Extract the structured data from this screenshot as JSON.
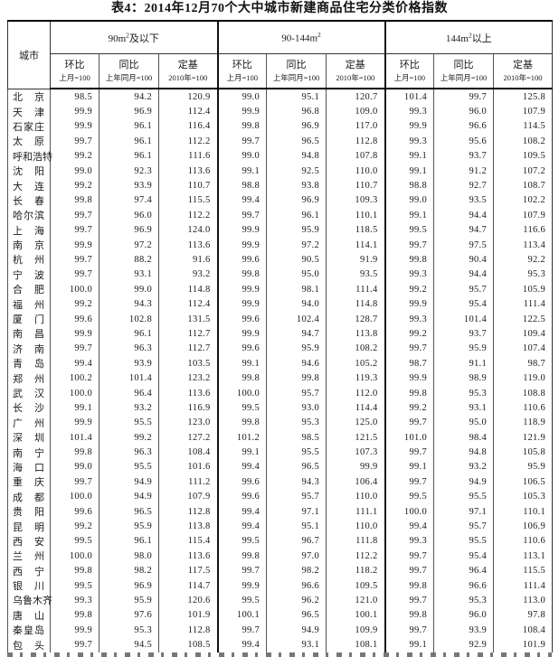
{
  "title": "表4：2014年12月70个大中城市新建商品住宅分类价格指数",
  "table": {
    "city_header": "城市",
    "groups": [
      {
        "pre": "90m",
        "sup": "2",
        "post": "及以下"
      },
      {
        "pre": "90-144m",
        "sup": "2",
        "post": ""
      },
      {
        "pre": "144m",
        "sup": "2",
        "post": "以上"
      }
    ],
    "sub_headers": [
      {
        "label": "环比",
        "base": "上月=100"
      },
      {
        "label": "同比",
        "base": "上年同月=100"
      },
      {
        "label": "定基",
        "base": "2010年=100"
      }
    ],
    "rows": [
      {
        "city": "北京",
        "values": [
          "98.5",
          "94.2",
          "120.9",
          "99.0",
          "95.1",
          "120.7",
          "101.4",
          "99.7",
          "125.8"
        ]
      },
      {
        "city": "天津",
        "values": [
          "99.9",
          "96.9",
          "112.4",
          "99.9",
          "96.8",
          "109.0",
          "99.3",
          "96.0",
          "107.9"
        ]
      },
      {
        "city": "石家庄",
        "values": [
          "99.9",
          "96.1",
          "116.4",
          "99.8",
          "96.9",
          "117.0",
          "99.9",
          "96.6",
          "114.5"
        ]
      },
      {
        "city": "太原",
        "values": [
          "99.7",
          "96.1",
          "112.2",
          "99.7",
          "96.5",
          "112.8",
          "99.3",
          "95.6",
          "108.2"
        ]
      },
      {
        "city": "呼和浩特",
        "values": [
          "99.2",
          "96.1",
          "111.6",
          "99.0",
          "94.8",
          "107.8",
          "99.1",
          "93.7",
          "109.5"
        ]
      },
      {
        "city": "沈阳",
        "values": [
          "99.0",
          "92.3",
          "113.6",
          "99.1",
          "92.5",
          "110.0",
          "99.1",
          "91.2",
          "107.2"
        ]
      },
      {
        "city": "大连",
        "values": [
          "99.2",
          "93.9",
          "110.7",
          "98.8",
          "93.8",
          "110.7",
          "98.8",
          "92.7",
          "108.7"
        ]
      },
      {
        "city": "长春",
        "values": [
          "99.8",
          "97.4",
          "115.5",
          "99.4",
          "96.9",
          "109.3",
          "99.0",
          "93.5",
          "102.2"
        ]
      },
      {
        "city": "哈尔滨",
        "values": [
          "99.7",
          "96.0",
          "112.2",
          "99.7",
          "96.1",
          "110.1",
          "99.1",
          "94.4",
          "107.9"
        ]
      },
      {
        "city": "上海",
        "values": [
          "99.7",
          "96.9",
          "124.0",
          "99.9",
          "95.9",
          "118.5",
          "99.5",
          "94.7",
          "116.6"
        ]
      },
      {
        "city": "南京",
        "values": [
          "99.9",
          "97.2",
          "113.6",
          "99.9",
          "97.2",
          "114.1",
          "99.7",
          "97.5",
          "113.4"
        ]
      },
      {
        "city": "杭州",
        "values": [
          "99.7",
          "88.2",
          "91.6",
          "99.6",
          "90.5",
          "91.9",
          "99.8",
          "90.4",
          "92.2"
        ]
      },
      {
        "city": "宁波",
        "values": [
          "99.7",
          "93.1",
          "93.2",
          "99.8",
          "95.0",
          "93.5",
          "99.3",
          "94.4",
          "95.3"
        ]
      },
      {
        "city": "合肥",
        "values": [
          "100.0",
          "99.0",
          "114.8",
          "99.9",
          "98.1",
          "111.4",
          "99.2",
          "95.7",
          "105.9"
        ]
      },
      {
        "city": "福州",
        "values": [
          "99.2",
          "94.3",
          "112.4",
          "99.9",
          "94.0",
          "114.8",
          "99.9",
          "95.4",
          "111.4"
        ]
      },
      {
        "city": "厦门",
        "values": [
          "99.6",
          "102.8",
          "131.5",
          "99.6",
          "102.4",
          "128.7",
          "99.3",
          "101.4",
          "122.5"
        ]
      },
      {
        "city": "南昌",
        "values": [
          "99.9",
          "96.1",
          "112.7",
          "99.9",
          "94.7",
          "113.8",
          "99.2",
          "93.7",
          "109.4"
        ]
      },
      {
        "city": "济南",
        "values": [
          "99.7",
          "96.3",
          "112.7",
          "99.6",
          "95.9",
          "108.2",
          "99.7",
          "95.9",
          "107.4"
        ]
      },
      {
        "city": "青岛",
        "values": [
          "99.4",
          "93.9",
          "103.5",
          "99.1",
          "94.6",
          "105.2",
          "98.7",
          "91.1",
          "98.7"
        ]
      },
      {
        "city": "郑州",
        "values": [
          "100.2",
          "101.4",
          "123.2",
          "99.8",
          "99.8",
          "119.3",
          "99.9",
          "98.9",
          "119.0"
        ]
      },
      {
        "city": "武汉",
        "values": [
          "100.0",
          "96.4",
          "113.6",
          "100.0",
          "95.7",
          "112.0",
          "99.8",
          "95.3",
          "108.8"
        ]
      },
      {
        "city": "长沙",
        "values": [
          "99.1",
          "93.2",
          "116.9",
          "99.5",
          "93.0",
          "114.4",
          "99.2",
          "93.1",
          "110.6"
        ]
      },
      {
        "city": "广州",
        "values": [
          "99.9",
          "95.5",
          "123.0",
          "99.8",
          "95.3",
          "125.0",
          "99.7",
          "95.0",
          "118.9"
        ]
      },
      {
        "city": "深圳",
        "values": [
          "101.4",
          "99.2",
          "127.2",
          "101.2",
          "98.5",
          "121.5",
          "101.0",
          "98.4",
          "121.9"
        ]
      },
      {
        "city": "南宁",
        "values": [
          "99.8",
          "96.3",
          "108.4",
          "99.1",
          "95.5",
          "107.3",
          "99.7",
          "94.8",
          "105.8"
        ]
      },
      {
        "city": "海口",
        "values": [
          "99.0",
          "95.5",
          "101.6",
          "99.4",
          "96.5",
          "99.9",
          "99.1",
          "93.2",
          "95.9"
        ]
      },
      {
        "city": "重庆",
        "values": [
          "99.7",
          "94.9",
          "111.2",
          "99.6",
          "94.3",
          "106.4",
          "99.7",
          "94.9",
          "106.5"
        ]
      },
      {
        "city": "成都",
        "values": [
          "100.0",
          "94.9",
          "107.9",
          "99.6",
          "95.7",
          "110.0",
          "99.5",
          "95.5",
          "105.3"
        ]
      },
      {
        "city": "贵阳",
        "values": [
          "99.6",
          "96.5",
          "112.8",
          "99.4",
          "97.1",
          "111.1",
          "100.0",
          "97.1",
          "110.1"
        ]
      },
      {
        "city": "昆明",
        "values": [
          "99.2",
          "95.9",
          "113.8",
          "99.4",
          "95.1",
          "110.0",
          "99.4",
          "95.7",
          "106.9"
        ]
      },
      {
        "city": "西安",
        "values": [
          "99.5",
          "96.1",
          "115.4",
          "99.5",
          "96.7",
          "111.8",
          "99.3",
          "95.5",
          "110.6"
        ]
      },
      {
        "city": "兰州",
        "values": [
          "100.0",
          "98.0",
          "113.6",
          "99.8",
          "97.0",
          "112.2",
          "99.7",
          "95.4",
          "113.1"
        ]
      },
      {
        "city": "西宁",
        "values": [
          "99.8",
          "98.2",
          "117.5",
          "99.7",
          "98.2",
          "118.2",
          "99.7",
          "96.4",
          "115.5"
        ]
      },
      {
        "city": "银川",
        "values": [
          "99.5",
          "96.9",
          "114.7",
          "99.9",
          "96.6",
          "109.5",
          "99.8",
          "96.6",
          "111.4"
        ]
      },
      {
        "city": "乌鲁木齐",
        "values": [
          "99.3",
          "95.9",
          "120.6",
          "99.5",
          "96.2",
          "121.0",
          "99.7",
          "95.3",
          "113.0"
        ]
      },
      {
        "city": "唐山",
        "values": [
          "99.8",
          "97.6",
          "101.9",
          "100.1",
          "96.5",
          "100.1",
          "99.8",
          "96.0",
          "97.8"
        ]
      },
      {
        "city": "秦皇岛",
        "values": [
          "99.9",
          "95.3",
          "112.8",
          "99.7",
          "94.9",
          "109.9",
          "99.7",
          "93.9",
          "108.4"
        ]
      },
      {
        "city": "包头",
        "values": [
          "99.7",
          "94.5",
          "108.5",
          "99.4",
          "93.1",
          "108.1",
          "99.1",
          "92.9",
          "101.9"
        ]
      }
    ]
  }
}
